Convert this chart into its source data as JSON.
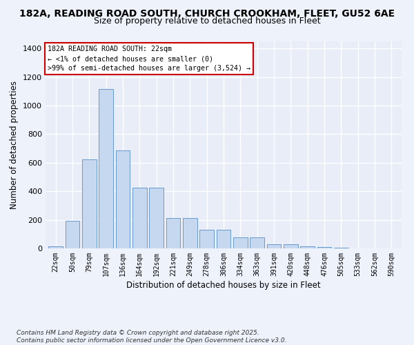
{
  "title_line1": "182A, READING ROAD SOUTH, CHURCH CROOKHAM, FLEET, GU52 6AE",
  "title_line2": "Size of property relative to detached houses in Fleet",
  "xlabel": "Distribution of detached houses by size in Fleet",
  "ylabel": "Number of detached properties",
  "categories": [
    "22sqm",
    "50sqm",
    "79sqm",
    "107sqm",
    "136sqm",
    "164sqm",
    "192sqm",
    "221sqm",
    "249sqm",
    "278sqm",
    "306sqm",
    "334sqm",
    "363sqm",
    "391sqm",
    "420sqm",
    "448sqm",
    "476sqm",
    "505sqm",
    "533sqm",
    "562sqm",
    "590sqm"
  ],
  "values": [
    15,
    195,
    625,
    1115,
    685,
    425,
    425,
    215,
    215,
    130,
    130,
    75,
    75,
    30,
    30,
    15,
    10,
    5,
    2,
    2,
    1
  ],
  "bar_color": "#c5d8f0",
  "bar_edge_color": "#6699cc",
  "annotation_box_text": "182A READING ROAD SOUTH: 22sqm\n← <1% of detached houses are smaller (0)\n>99% of semi-detached houses are larger (3,524) →",
  "annotation_box_color": "#ffffff",
  "annotation_box_edge_color": "#cc0000",
  "ylim": [
    0,
    1450
  ],
  "yticks": [
    0,
    200,
    400,
    600,
    800,
    1000,
    1200,
    1400
  ],
  "background_color": "#eef2fb",
  "plot_bg_color": "#e8edf8",
  "footer_text": "Contains HM Land Registry data © Crown copyright and database right 2025.\nContains public sector information licensed under the Open Government Licence v3.0.",
  "grid_color": "#ffffff",
  "title_fontsize1": 10,
  "title_fontsize2": 9
}
